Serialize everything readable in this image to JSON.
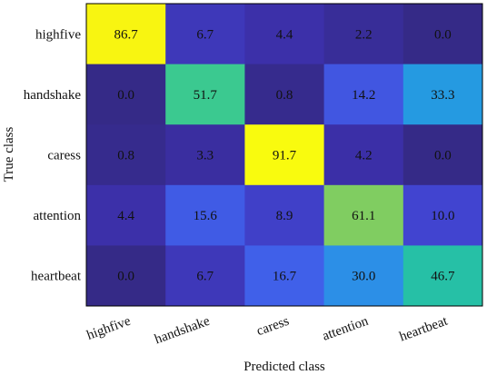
{
  "chart_data": {
    "type": "heatmap",
    "title": "",
    "xlabel": "Predicted class",
    "ylabel": "True class",
    "x_categories": [
      "highfive",
      "handshake",
      "caress",
      "attention",
      "heartbeat"
    ],
    "y_categories": [
      "highfive",
      "handshake",
      "caress",
      "attention",
      "heartbeat"
    ],
    "values": [
      [
        "86.7",
        "6.7",
        "4.4",
        "2.2",
        "0.0"
      ],
      [
        "0.0",
        "51.7",
        "0.8",
        "14.2",
        "33.3"
      ],
      [
        "0.8",
        "3.3",
        "91.7",
        "4.2",
        "0.0"
      ],
      [
        "4.4",
        "15.6",
        "8.9",
        "61.1",
        "10.0"
      ],
      [
        "0.0",
        "6.7",
        "16.7",
        "30.0",
        "46.7"
      ]
    ],
    "value_range": [
      0,
      91.7
    ],
    "colormap": "parula",
    "grid": false,
    "legend": "none"
  }
}
